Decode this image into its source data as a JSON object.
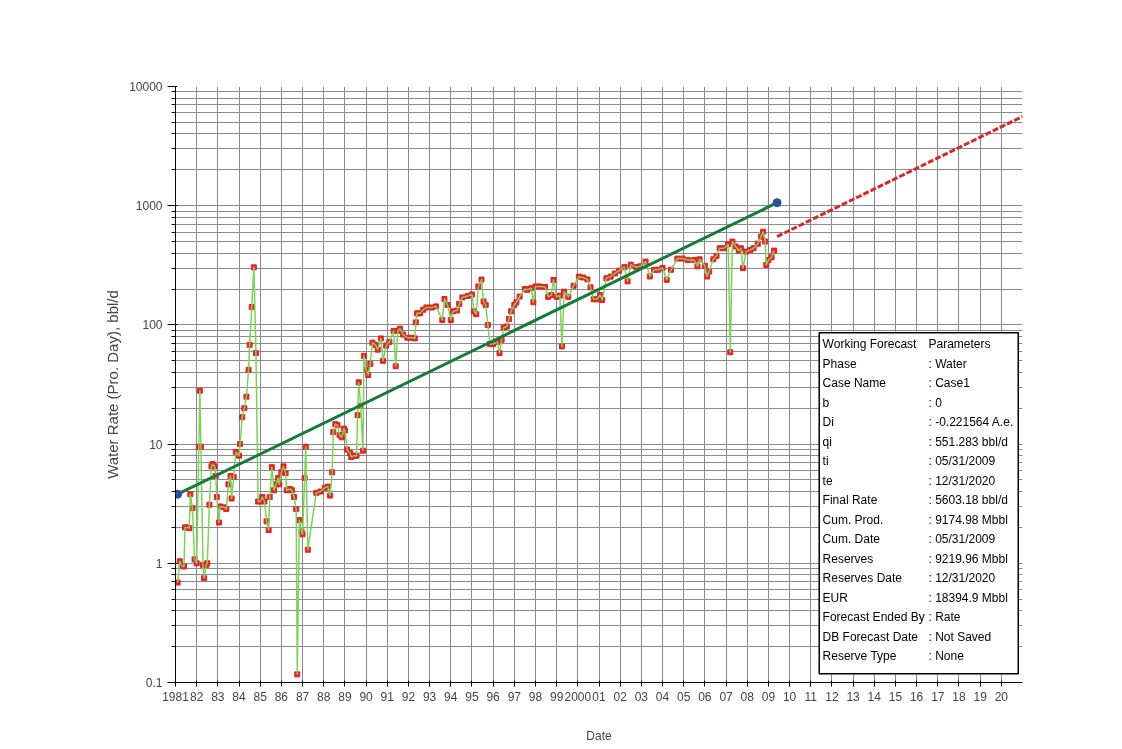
{
  "chart_data": {
    "type": "line",
    "xlabel": "Date",
    "ylabel": "Water Rate (Pro. Day), bbl/d",
    "log": "y",
    "grid": true,
    "xlim": [
      1981,
      2021
    ],
    "ylim": [
      0.1,
      10000
    ],
    "yticks": [
      0.1,
      1,
      10,
      100,
      1000,
      10000
    ],
    "xticks": [
      1981,
      {
        "value": 1982,
        "label": "82"
      },
      {
        "value": 1983,
        "label": "83"
      },
      {
        "value": 1984,
        "label": "84"
      },
      {
        "value": 1985,
        "label": "85"
      },
      {
        "value": 1986,
        "label": "86"
      },
      {
        "value": 1987,
        "label": "87"
      },
      {
        "value": 1988,
        "label": "88"
      },
      {
        "value": 1989,
        "label": "89"
      },
      {
        "value": 1990,
        "label": "90"
      },
      {
        "value": 1991,
        "label": "91"
      },
      {
        "value": 1992,
        "label": "92"
      },
      {
        "value": 1993,
        "label": "93"
      },
      {
        "value": 1994,
        "label": "94"
      },
      {
        "value": 1995,
        "label": "95"
      },
      {
        "value": 1996,
        "label": "96"
      },
      {
        "value": 1997,
        "label": "97"
      },
      {
        "value": 1998,
        "label": "98"
      },
      {
        "value": 1999,
        "label": "99"
      },
      2000,
      {
        "value": 2001,
        "label": "01"
      },
      {
        "value": 2002,
        "label": "02"
      },
      {
        "value": 2003,
        "label": "03"
      },
      {
        "value": 2004,
        "label": "04"
      },
      {
        "value": 2005,
        "label": "05"
      },
      {
        "value": 2006,
        "label": "06"
      },
      {
        "value": 2007,
        "label": "07"
      },
      {
        "value": 2008,
        "label": "08"
      },
      {
        "value": 2009,
        "label": "09"
      },
      {
        "value": 2010,
        "label": "10"
      },
      {
        "value": 2011,
        "label": "11"
      },
      {
        "value": 2012,
        "label": "12"
      },
      {
        "value": 2013,
        "label": "13"
      },
      {
        "value": 2014,
        "label": "14"
      },
      {
        "value": 2015,
        "label": "15"
      },
      {
        "value": 2016,
        "label": "16"
      },
      {
        "value": 2017,
        "label": "17"
      },
      {
        "value": 2018,
        "label": "18"
      },
      {
        "value": 2019,
        "label": "19"
      },
      {
        "value": 2020,
        "label": "20"
      }
    ],
    "series": [
      {
        "color": "#7dd35a",
        "marker": "none",
        "line_style": "solid",
        "x": [
          1981.1,
          1981.2,
          1981.3,
          1981.4,
          1981.45,
          1981.55,
          1981.65,
          1981.7,
          1981.8,
          1981.9,
          1982.0,
          1982.1,
          1982.15,
          1982.2,
          1982.3,
          1982.35,
          1982.45,
          1982.5,
          1982.6,
          1982.7,
          1982.75,
          1982.85,
          1982.9,
          1982.95,
          1983.05,
          1983.1,
          1983.3,
          1983.4,
          1983.5,
          1983.6,
          1983.65,
          1983.75,
          1983.85,
          1984.0,
          1984.05,
          1984.15,
          1984.25,
          1984.35,
          1984.45,
          1984.5,
          1984.6,
          1984.7,
          1984.8,
          1984.9,
          1985.0,
          1985.1,
          1985.2,
          1985.3,
          1985.4,
          1985.45,
          1985.55,
          1985.65,
          1985.75,
          1985.85,
          1985.9,
          1986.0,
          1986.1,
          1986.2,
          1986.25,
          1986.4,
          1986.5,
          1986.6,
          1986.7,
          1986.75,
          1986.85,
          1986.95,
          1987.0,
          1987.1,
          1987.15,
          1987.25,
          1987.65,
          1987.85,
          1988.05,
          1988.2,
          1988.3,
          1988.4,
          1988.45,
          1988.55,
          1988.65,
          1988.75,
          1988.85,
          1988.95,
          1989.0,
          1989.1,
          1989.25,
          1989.3,
          1989.45,
          1989.55,
          1989.6,
          1989.65,
          1989.75,
          1989.85,
          1989.9,
          1990.0,
          1990.1,
          1990.2,
          1990.3,
          1990.45,
          1990.55,
          1990.7,
          1990.8,
          1990.95,
          1991.1,
          1991.3,
          1991.4,
          1991.5,
          1991.6,
          1991.75,
          1991.95,
          1992.15,
          1992.3,
          1992.35,
          1992.4,
          1992.55,
          1992.7,
          1992.85,
          1993.1,
          1993.3,
          1993.6,
          1993.7,
          1993.85,
          1994.0,
          1994.1,
          1994.3,
          1994.4,
          1994.55,
          1994.8,
          1995.0,
          1995.1,
          1995.2,
          1995.3,
          1995.45,
          1995.55,
          1995.65,
          1995.75,
          1995.85,
          1996.0,
          1996.2,
          1996.3,
          1996.4,
          1996.5,
          1996.65,
          1996.75,
          1996.85,
          1997.0,
          1997.1,
          1997.25,
          1997.5,
          1997.6,
          1997.8,
          1997.9,
          1998.0,
          1998.2,
          1998.45,
          1998.6,
          1998.75,
          1998.85,
          1999.0,
          1999.15,
          1999.25,
          1999.35,
          1999.55,
          1999.8,
          2000.05,
          2000.25,
          2000.45,
          2000.6,
          2000.75,
          2000.9,
          2001.05,
          2001.15,
          2001.35,
          2001.55,
          2001.75,
          2001.95,
          2002.2,
          2002.35,
          2002.5,
          2002.75,
          2002.95,
          2003.2,
          2003.4,
          2003.6,
          2003.8,
          2004.0,
          2004.2,
          2004.4,
          2004.7,
          2004.95,
          2005.2,
          2005.5,
          2005.65,
          2005.75,
          2006.0,
          2006.1,
          2006.2,
          2006.4,
          2006.55,
          2006.7,
          2006.9,
          2007.1,
          2007.2,
          2007.3,
          2007.45,
          2007.6,
          2007.7,
          2007.8,
          2007.95,
          2008.15,
          2008.3,
          2008.5,
          2008.65,
          2008.75,
          2008.85,
          2008.9,
          2009.0,
          2009.15,
          2009.27
        ],
        "values": [
          0.69,
          1.04,
          0.95,
          0.94,
          2.0,
          2.0,
          1.97,
          3.8,
          2.9,
          1.08,
          1.0,
          9.5,
          28,
          9.5,
          0.97,
          0.75,
          0.97,
          1.0,
          3.1,
          6.5,
          6.8,
          6.5,
          5.4,
          3.6,
          2.2,
          3.0,
          2.95,
          2.85,
          4.6,
          5.4,
          3.5,
          5.3,
          8.6,
          8.0,
          10,
          16.8,
          20,
          25,
          42,
          68,
          141,
          304,
          58,
          3.3,
          3.3,
          3.6,
          3.3,
          2.25,
          1.9,
          3.6,
          6.4,
          4.1,
          4.6,
          5.2,
          4.6,
          5.8,
          6.5,
          5.7,
          4.1,
          4.2,
          4.1,
          3.6,
          2.85,
          0.117,
          2.3,
          1.85,
          1.75,
          5.2,
          9.5,
          1.3,
          3.9,
          4.0,
          4.3,
          4.4,
          3.7,
          5.8,
          12.6,
          14.7,
          14.4,
          11.9,
          11.4,
          13.5,
          13.0,
          9.0,
          8.4,
          7.8,
          8.0,
          8.0,
          17.5,
          33,
          21,
          8.8,
          55,
          42,
          38,
          47,
          71,
          68,
          62,
          77,
          50,
          67,
          72,
          89,
          45,
          89,
          93,
          83,
          78,
          78,
          77,
          105,
          125,
          125,
          134,
          140,
          140,
          143,
          110,
          165,
          147,
          110,
          130,
          132,
          150,
          170,
          175,
          180,
          130,
          123,
          210,
          240,
          157,
          147,
          100,
          69,
          69,
          72,
          58,
          75,
          95,
          97,
          112,
          130,
          147,
          155,
          173,
          200,
          197,
          203,
          155,
          210,
          210,
          208,
          172,
          178,
          238,
          172,
          176,
          66,
          190,
          172,
          213,
          254,
          250,
          241,
          207,
          164,
          164,
          178,
          162,
          246,
          254,
          270,
          285,
          305,
          232,
          320,
          305,
          310,
          340,
          255,
          290,
          290,
          300,
          239,
          290,
          360,
          360,
          350,
          350,
          310,
          355,
          313,
          255,
          280,
          355,
          380,
          440,
          440,
          475,
          59,
          500,
          455,
          420,
          440,
          300,
          412,
          425,
          440,
          480,
          550,
          605,
          500,
          318,
          350,
          370,
          420
        ]
      },
      {
        "type": "scatter",
        "color": "#e8202a",
        "marker": "square",
        "x": [
          1981.1,
          1981.2,
          1981.3,
          1981.4,
          1981.45,
          1981.55,
          1981.65,
          1981.7,
          1981.8,
          1981.9,
          1982.0,
          1982.1,
          1982.15,
          1982.2,
          1982.3,
          1982.35,
          1982.45,
          1982.5,
          1982.6,
          1982.7,
          1982.75,
          1982.85,
          1982.9,
          1982.95,
          1983.05,
          1983.1,
          1983.3,
          1983.4,
          1983.5,
          1983.6,
          1983.65,
          1983.75,
          1983.85,
          1984.0,
          1984.05,
          1984.15,
          1984.25,
          1984.35,
          1984.45,
          1984.5,
          1984.6,
          1984.7,
          1984.8,
          1984.9,
          1985.0,
          1985.1,
          1985.2,
          1985.3,
          1985.4,
          1985.45,
          1985.55,
          1985.65,
          1985.75,
          1985.85,
          1985.9,
          1986.0,
          1986.1,
          1986.2,
          1986.25,
          1986.4,
          1986.5,
          1986.6,
          1986.7,
          1986.75,
          1986.85,
          1986.95,
          1987.0,
          1987.1,
          1987.15,
          1987.25,
          1987.65,
          1987.85,
          1988.05,
          1988.2,
          1988.3,
          1988.4,
          1988.45,
          1988.55,
          1988.65,
          1988.75,
          1988.85,
          1988.95,
          1989.0,
          1989.1,
          1989.25,
          1989.3,
          1989.45,
          1989.55,
          1989.6,
          1989.65,
          1989.75,
          1989.85,
          1989.9,
          1990.0,
          1990.1,
          1990.2,
          1990.3,
          1990.45,
          1990.55,
          1990.7,
          1990.8,
          1990.95,
          1991.1,
          1991.3,
          1991.4,
          1991.5,
          1991.6,
          1991.75,
          1991.95,
          1992.15,
          1992.3,
          1992.35,
          1992.4,
          1992.55,
          1992.7,
          1992.85,
          1993.1,
          1993.3,
          1993.6,
          1993.7,
          1993.85,
          1994.0,
          1994.1,
          1994.3,
          1994.4,
          1994.55,
          1994.8,
          1995.0,
          1995.1,
          1995.2,
          1995.3,
          1995.45,
          1995.55,
          1995.65,
          1995.75,
          1995.85,
          1996.0,
          1996.2,
          1996.3,
          1996.4,
          1996.5,
          1996.65,
          1996.75,
          1996.85,
          1997.0,
          1997.1,
          1997.25,
          1997.5,
          1997.6,
          1997.8,
          1997.9,
          1998.0,
          1998.2,
          1998.45,
          1998.6,
          1998.75,
          1998.85,
          1999.0,
          1999.15,
          1999.25,
          1999.35,
          1999.55,
          1999.8,
          2000.05,
          2000.25,
          2000.45,
          2000.6,
          2000.75,
          2000.9,
          2001.05,
          2001.15,
          2001.35,
          2001.55,
          2001.75,
          2001.95,
          2002.2,
          2002.35,
          2002.5,
          2002.75,
          2002.95,
          2003.2,
          2003.4,
          2003.6,
          2003.8,
          2004.0,
          2004.2,
          2004.4,
          2004.7,
          2004.95,
          2005.2,
          2005.5,
          2005.65,
          2005.75,
          2006.0,
          2006.1,
          2006.2,
          2006.4,
          2006.55,
          2006.7,
          2006.9,
          2007.1,
          2007.2,
          2007.3,
          2007.45,
          2007.6,
          2007.7,
          2007.8,
          2007.95,
          2008.15,
          2008.3,
          2008.5,
          2008.65,
          2008.75,
          2008.85,
          2008.9,
          2009.0,
          2009.15,
          2009.27
        ],
        "values": [
          0.69,
          1.04,
          0.95,
          0.94,
          2.0,
          2.0,
          1.97,
          3.8,
          2.9,
          1.08,
          1.0,
          9.5,
          28,
          9.5,
          0.97,
          0.75,
          0.97,
          1.0,
          3.1,
          6.5,
          6.8,
          6.5,
          5.4,
          3.6,
          2.2,
          3.0,
          2.95,
          2.85,
          4.6,
          5.4,
          3.5,
          5.3,
          8.6,
          8.0,
          10,
          16.8,
          20,
          25,
          42,
          68,
          141,
          304,
          58,
          3.3,
          3.3,
          3.6,
          3.3,
          2.25,
          1.9,
          3.6,
          6.4,
          4.1,
          4.6,
          5.2,
          4.6,
          5.8,
          6.5,
          5.7,
          4.1,
          4.2,
          4.1,
          3.6,
          2.85,
          0.117,
          2.3,
          1.85,
          1.75,
          5.2,
          9.5,
          1.3,
          3.9,
          4.0,
          4.3,
          4.4,
          3.7,
          5.8,
          12.6,
          14.7,
          14.4,
          11.9,
          11.4,
          13.5,
          13.0,
          9.0,
          8.4,
          7.8,
          8.0,
          8.0,
          17.5,
          33,
          21,
          8.8,
          55,
          42,
          38,
          47,
          71,
          68,
          62,
          77,
          50,
          67,
          72,
          89,
          45,
          89,
          93,
          83,
          78,
          78,
          77,
          105,
          125,
          125,
          134,
          140,
          140,
          143,
          110,
          165,
          147,
          110,
          130,
          132,
          150,
          170,
          175,
          180,
          130,
          123,
          210,
          240,
          157,
          147,
          100,
          69,
          69,
          72,
          58,
          75,
          95,
          97,
          112,
          130,
          147,
          155,
          173,
          200,
          197,
          203,
          155,
          210,
          210,
          208,
          172,
          178,
          238,
          172,
          176,
          66,
          190,
          172,
          213,
          254,
          250,
          241,
          207,
          164,
          164,
          178,
          162,
          246,
          254,
          270,
          285,
          305,
          232,
          320,
          305,
          310,
          340,
          255,
          290,
          290,
          300,
          239,
          290,
          360,
          360,
          350,
          350,
          310,
          355,
          313,
          255,
          280,
          355,
          380,
          440,
          440,
          475,
          59,
          500,
          455,
          420,
          440,
          300,
          412,
          425,
          440,
          480,
          550,
          605,
          500,
          318,
          350,
          370,
          420
        ]
      },
      {
        "type": "line",
        "color": "#157a3a",
        "marker": "none",
        "line_style": "solid",
        "x": [
          1981.1,
          2009.41
        ],
        "values": [
          3.8,
          1060
        ]
      },
      {
        "type": "scatter",
        "color": "#2a4f9c",
        "marker": "circle",
        "x": [
          1981.1,
          2009.41
        ],
        "values": [
          3.8,
          1060
        ]
      },
      {
        "type": "line",
        "color": "#d42a2a",
        "marker": "none",
        "line_style": "dashed",
        "x": [
          2009.41,
          2021.0
        ],
        "values": [
          551.283,
          5603.18
        ]
      }
    ],
    "annotations": [
      "Working Forecast",
      "Parameters",
      "Phase",
      ": Water",
      "Case Name",
      ": Case1",
      "b",
      ": 0",
      "Di",
      ": -0.221564 A.e.",
      "qi",
      ": 551.283 bbl/d",
      "ti",
      ": 05/31/2009",
      "te",
      ": 12/31/2020",
      "Final Rate",
      ": 5603.18 bbl/d",
      "Cum. Prod.",
      ": 9174.98 Mbbl",
      "Cum. Date",
      ": 05/31/2009",
      "Reserves",
      ": 9219.96 Mbbl",
      "Reserves Date",
      ": 12/31/2020",
      "EUR",
      ": 18394.9 Mbbl",
      "Forecast Ended By",
      ": Rate",
      "DB Forecast Date",
      ": Not Saved",
      "Reserve Type",
      ": None"
    ]
  }
}
